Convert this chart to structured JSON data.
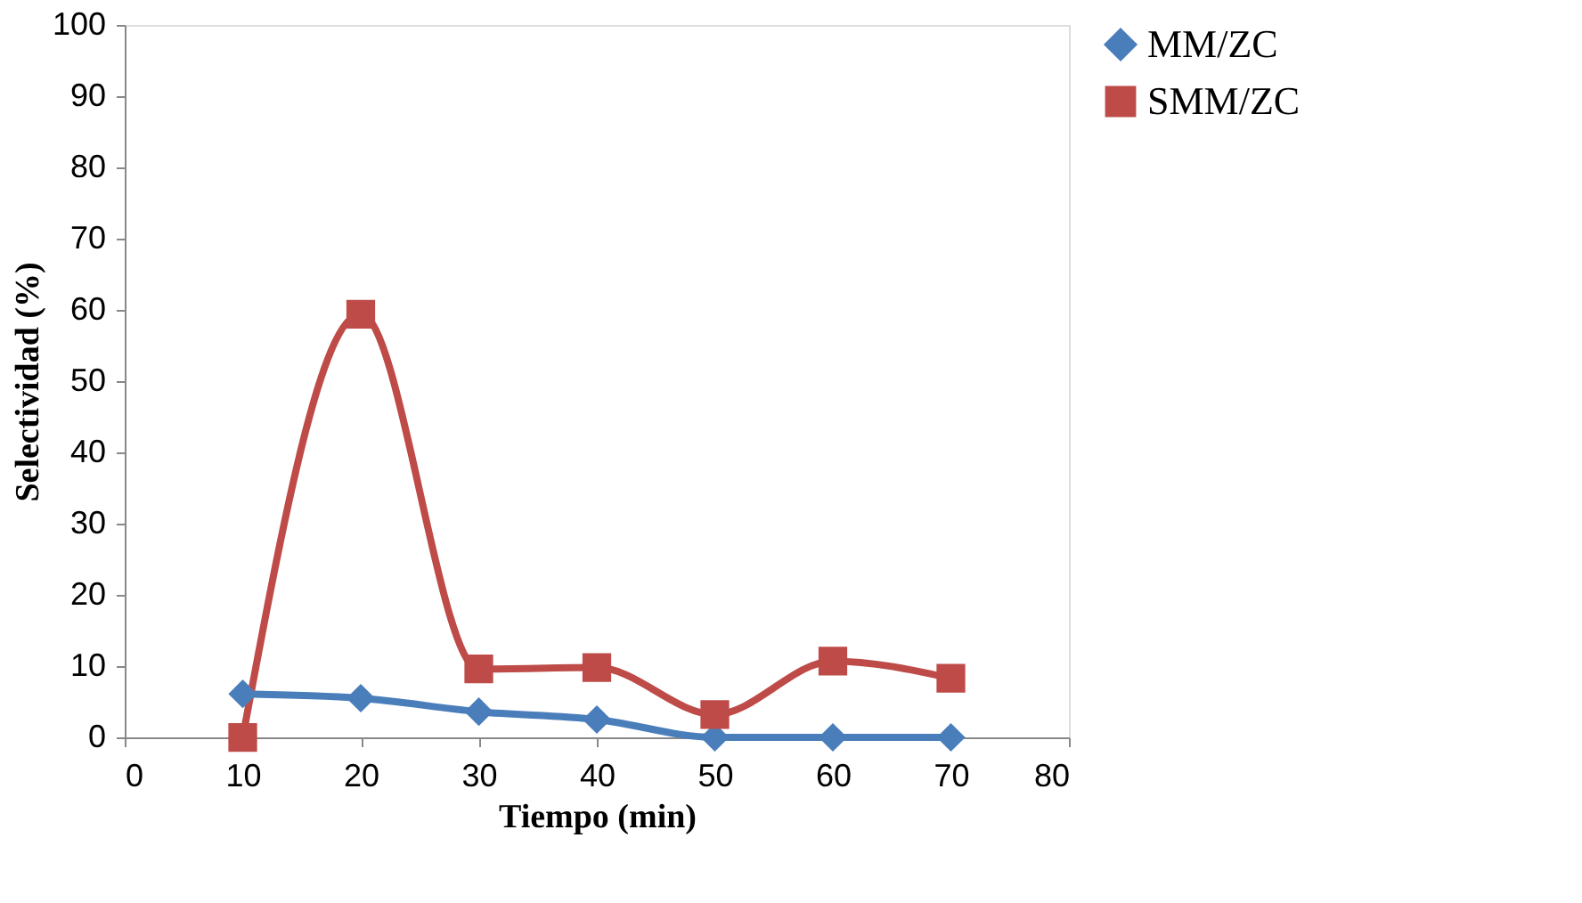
{
  "chart_data": {
    "type": "line",
    "xlabel": "Tiempo (min)",
    "ylabel": "Selectividad (%)",
    "x": [
      10,
      20,
      30,
      40,
      50,
      60,
      70
    ],
    "series": [
      {
        "name": "MM/ZC",
        "color": "#4a7ebb",
        "marker": "diamond",
        "values": [
          6.1,
          5.5,
          3.6,
          2.5,
          0,
          0,
          0
        ]
      },
      {
        "name": "SMM/ZC",
        "color": "#be4b48",
        "marker": "square",
        "values": [
          0,
          59.4,
          9.6,
          9.8,
          3.2,
          10.7,
          8.3
        ]
      }
    ],
    "xlim": [
      0,
      80
    ],
    "xticks": [
      0,
      10,
      20,
      30,
      40,
      50,
      60,
      70,
      80
    ],
    "ylim": [
      0,
      100
    ],
    "yticks": [
      0,
      10,
      20,
      30,
      40,
      50,
      60,
      70,
      80,
      90,
      100
    ],
    "grid": false,
    "legend": "right",
    "line_style": "solid"
  }
}
